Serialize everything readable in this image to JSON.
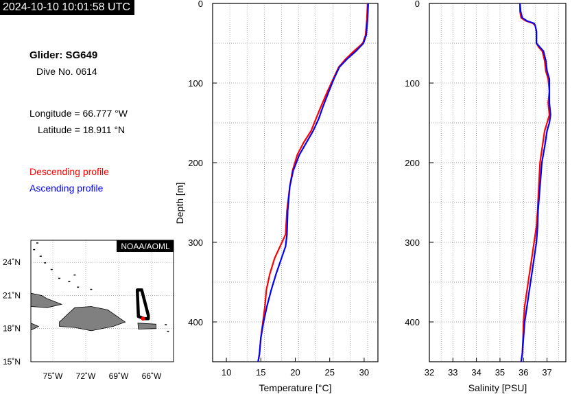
{
  "header": {
    "timestamp": "2024-10-10 10:01:58 UTC",
    "glider": "Glider: SG649",
    "dive": "Dive No. 0614",
    "longitude": "Longitude = 66.777 °W",
    "latitude": "Latitude = 18.911 °N",
    "descending_label": "Descending profile",
    "ascending_label": "Ascending profile"
  },
  "colors": {
    "descending": "#ff0000",
    "ascending": "#0000ff",
    "land": "#808080",
    "track": "#000000"
  },
  "map": {
    "badge": "NOAA/AOML",
    "lon_ticks": [
      "75˚W",
      "72˚W",
      "69˚W",
      "66˚W"
    ],
    "lat_ticks": [
      "24˚N",
      "21˚N",
      "18˚N",
      "15˚N"
    ],
    "lon_values": [
      -75,
      -72,
      -69,
      -66
    ],
    "lat_values": [
      24,
      21,
      18,
      15
    ],
    "xlim": [
      -77,
      -64
    ],
    "ylim": [
      15,
      26
    ],
    "track": [
      [
        -66.7,
        18.9
      ],
      [
        -66.3,
        18.9
      ],
      [
        -66.3,
        19.2
      ],
      [
        -66.9,
        21.5
      ],
      [
        -67.3,
        21.5
      ],
      [
        -67.2,
        19.1
      ],
      [
        -66.7,
        18.9
      ]
    ],
    "position": [
      -66.777,
      18.911
    ],
    "islands": [
      {
        "name": "Cuba",
        "points": [
          [
            -77,
            21.2
          ],
          [
            -76,
            21.0
          ],
          [
            -75.5,
            20.7
          ],
          [
            -74.2,
            20.2
          ],
          [
            -75.5,
            19.9
          ],
          [
            -77,
            20.0
          ]
        ]
      },
      {
        "name": "Hispaniola",
        "points": [
          [
            -74.4,
            18.6
          ],
          [
            -73.0,
            19.9
          ],
          [
            -71.5,
            20.0
          ],
          [
            -70.0,
            19.7
          ],
          [
            -68.4,
            18.6
          ],
          [
            -69.5,
            18.2
          ],
          [
            -71.5,
            17.8
          ],
          [
            -73.0,
            18.1
          ],
          [
            -74.4,
            18.2
          ]
        ]
      },
      {
        "name": "Jamaica",
        "points": [
          [
            -77,
            18.5
          ],
          [
            -76.3,
            18.2
          ],
          [
            -76.9,
            17.9
          ],
          [
            -77,
            17.9
          ]
        ]
      },
      {
        "name": "Puerto Rico",
        "points": [
          [
            -67.25,
            18.5
          ],
          [
            -65.6,
            18.4
          ],
          [
            -65.6,
            18.0
          ],
          [
            -67.2,
            17.95
          ]
        ]
      }
    ]
  },
  "chart_data": [
    {
      "type": "line",
      "title": "",
      "xlabel": "Temperature [°C]",
      "ylabel": "Depth [m]",
      "xlim": [
        8,
        32
      ],
      "ylim": [
        450,
        0
      ],
      "xticks": [
        10,
        15,
        20,
        25,
        30
      ],
      "yticks": [
        0,
        100,
        200,
        300,
        400
      ],
      "grid": true,
      "series": [
        {
          "name": "Descending profile",
          "points": [
            [
              30.5,
              0
            ],
            [
              30.4,
              20
            ],
            [
              30.2,
              40
            ],
            [
              29.8,
              50
            ],
            [
              28.5,
              60
            ],
            [
              27.3,
              70
            ],
            [
              26.3,
              80
            ],
            [
              25.5,
              95
            ],
            [
              24.7,
              110
            ],
            [
              23.7,
              130
            ],
            [
              23.0,
              145
            ],
            [
              22.3,
              160
            ],
            [
              21.2,
              175
            ],
            [
              20.3,
              190
            ],
            [
              19.6,
              210
            ],
            [
              19.2,
              230
            ],
            [
              18.8,
              260
            ],
            [
              18.6,
              290
            ],
            [
              17.8,
              305
            ],
            [
              17.0,
              320
            ],
            [
              16.3,
              340
            ],
            [
              15.8,
              360
            ],
            [
              15.6,
              380
            ],
            [
              15.3,
              400
            ],
            [
              15.0,
              420
            ],
            [
              14.8,
              440
            ],
            [
              14.6,
              450
            ]
          ]
        },
        {
          "name": "Ascending profile",
          "points": [
            [
              30.6,
              0
            ],
            [
              30.5,
              20
            ],
            [
              30.3,
              40
            ],
            [
              29.9,
              50
            ],
            [
              28.8,
              60
            ],
            [
              27.5,
              70
            ],
            [
              26.4,
              80
            ],
            [
              25.6,
              95
            ],
            [
              24.9,
              110
            ],
            [
              24.0,
              130
            ],
            [
              23.4,
              145
            ],
            [
              22.6,
              160
            ],
            [
              21.6,
              175
            ],
            [
              20.6,
              190
            ],
            [
              19.7,
              210
            ],
            [
              19.2,
              230
            ],
            [
              18.9,
              260
            ],
            [
              18.8,
              290
            ],
            [
              18.6,
              305
            ],
            [
              18.0,
              320
            ],
            [
              17.2,
              340
            ],
            [
              16.5,
              360
            ],
            [
              15.9,
              380
            ],
            [
              15.4,
              400
            ],
            [
              15.0,
              420
            ],
            [
              14.8,
              440
            ],
            [
              14.6,
              450
            ]
          ]
        }
      ]
    },
    {
      "type": "line",
      "title": "",
      "xlabel": "Salinity [PSU]",
      "ylabel": "",
      "xlim": [
        32,
        37.8
      ],
      "ylim": [
        450,
        0
      ],
      "xticks": [
        32,
        33,
        34,
        35,
        36,
        37
      ],
      "yticks": [
        0,
        100,
        200,
        300,
        400
      ],
      "grid": true,
      "series": [
        {
          "name": "Descending profile",
          "points": [
            [
              35.85,
              0
            ],
            [
              35.85,
              10
            ],
            [
              35.9,
              18
            ],
            [
              36.1,
              22
            ],
            [
              36.4,
              25
            ],
            [
              36.5,
              28
            ],
            [
              36.55,
              35
            ],
            [
              36.55,
              50
            ],
            [
              36.65,
              55
            ],
            [
              36.8,
              60
            ],
            [
              36.9,
              72
            ],
            [
              36.95,
              85
            ],
            [
              37.05,
              95
            ],
            [
              37.1,
              110
            ],
            [
              37.05,
              125
            ],
            [
              37.1,
              140
            ],
            [
              37.0,
              150
            ],
            [
              36.9,
              160
            ],
            [
              36.8,
              180
            ],
            [
              36.7,
              200
            ],
            [
              36.65,
              230
            ],
            [
              36.6,
              260
            ],
            [
              36.55,
              280
            ],
            [
              36.45,
              300
            ],
            [
              36.35,
              320
            ],
            [
              36.25,
              340
            ],
            [
              36.15,
              360
            ],
            [
              36.05,
              380
            ],
            [
              36.0,
              400
            ],
            [
              35.98,
              420
            ],
            [
              35.95,
              440
            ],
            [
              35.9,
              450
            ]
          ]
        },
        {
          "name": "Ascending profile",
          "points": [
            [
              35.85,
              0
            ],
            [
              35.88,
              10
            ],
            [
              35.95,
              18
            ],
            [
              36.15,
              22
            ],
            [
              36.45,
              25
            ],
            [
              36.5,
              28
            ],
            [
              36.55,
              35
            ],
            [
              36.55,
              50
            ],
            [
              36.7,
              55
            ],
            [
              36.85,
              60
            ],
            [
              36.95,
              72
            ],
            [
              37.0,
              85
            ],
            [
              37.1,
              95
            ],
            [
              37.1,
              110
            ],
            [
              37.1,
              125
            ],
            [
              37.15,
              140
            ],
            [
              37.1,
              150
            ],
            [
              37.0,
              160
            ],
            [
              36.9,
              180
            ],
            [
              36.78,
              200
            ],
            [
              36.7,
              230
            ],
            [
              36.62,
              260
            ],
            [
              36.6,
              280
            ],
            [
              36.55,
              300
            ],
            [
              36.45,
              320
            ],
            [
              36.35,
              340
            ],
            [
              36.25,
              360
            ],
            [
              36.15,
              380
            ],
            [
              36.05,
              400
            ],
            [
              36.0,
              420
            ],
            [
              35.95,
              440
            ],
            [
              35.9,
              450
            ]
          ]
        }
      ]
    }
  ]
}
